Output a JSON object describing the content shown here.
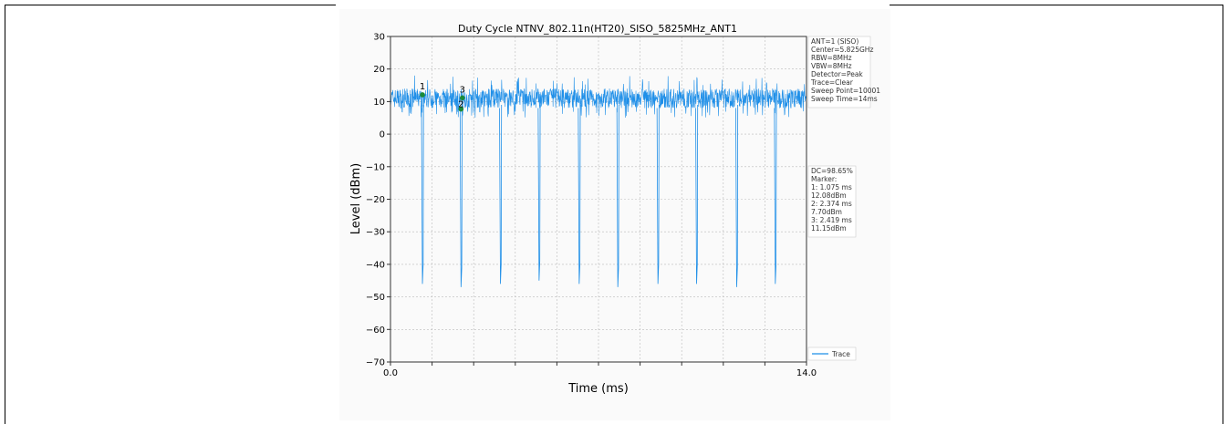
{
  "chart_data": {
    "type": "line",
    "title": "Duty Cycle NTNV_802.11n(HT20)_SISO_5825MHz_ANT1",
    "xlabel": "Time (ms)",
    "ylabel": "Level (dBm)",
    "xlim": [
      0.0,
      14.0
    ],
    "ylim": [
      -70,
      30
    ],
    "x_tick_labels": [
      "0.0",
      "14.0"
    ],
    "y_ticks": [
      30,
      20,
      10,
      0,
      -10,
      -20,
      -30,
      -40,
      -50,
      -60,
      -70
    ],
    "y_tick_labels": [
      "30",
      "20",
      "10",
      "0",
      "−10",
      "−20",
      "−30",
      "−40",
      "−50",
      "−60",
      "−70"
    ],
    "grid": true,
    "series": [
      {
        "name": "Trace",
        "color": "#1f8fe8",
        "baseline_dbm": 11,
        "noise_range_dbm": [
          5,
          18
        ],
        "dip_times_ms": [
          1.075,
          2.374,
          3.7,
          5.0,
          6.35,
          7.65,
          9.0,
          10.3,
          11.65,
          12.95
        ],
        "dip_floor_dbm": [
          -46,
          -47,
          -46,
          -45,
          -46,
          -47,
          -46,
          -46,
          -47,
          -46
        ]
      }
    ],
    "markers": [
      {
        "label": "1",
        "time_ms": 1.075,
        "level_dbm": 12.08
      },
      {
        "label": "2",
        "time_ms": 2.374,
        "level_dbm": 7.7
      },
      {
        "label": "3",
        "time_ms": 2.419,
        "level_dbm": 11.15
      }
    ],
    "settings_box": [
      "ANT=1 (SISO)",
      "Center=5.825GHz",
      "RBW=8MHz",
      "VBW=8MHz",
      "Detector=Peak",
      "Trace=Clear",
      "Sweep Point=10001",
      "Sweep Time=14ms"
    ],
    "marker_box": [
      "DC=98.65%",
      "Marker:",
      "1: 1.075 ms",
      "    12.08dBm",
      "2: 2.374 ms",
      "    7.70dBm",
      "3: 2.419 ms",
      "    11.15dBm"
    ],
    "legend": {
      "label": "Trace",
      "placement": "lower-right outside"
    }
  }
}
